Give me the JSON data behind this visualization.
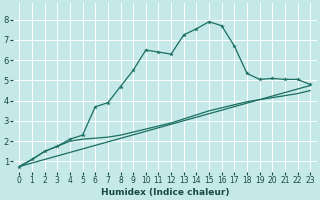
{
  "xlabel": "Humidex (Indice chaleur)",
  "xlim": [
    -0.5,
    23.5
  ],
  "ylim": [
    0.5,
    8.8
  ],
  "xticks": [
    0,
    1,
    2,
    3,
    4,
    5,
    6,
    7,
    8,
    9,
    10,
    11,
    12,
    13,
    14,
    15,
    16,
    17,
    18,
    19,
    20,
    21,
    22,
    23
  ],
  "yticks": [
    1,
    2,
    3,
    4,
    5,
    6,
    7,
    8
  ],
  "bg_color": "#c5e8e8",
  "grid_color": "#ffffff",
  "line_color": "#1a6e62",
  "curve_x": [
    0,
    1,
    2,
    3,
    4,
    5,
    6,
    7,
    8,
    9,
    10,
    11,
    12,
    13,
    14,
    15,
    16,
    17,
    18,
    19,
    20,
    21,
    22,
    23
  ],
  "curve_y": [
    0.75,
    1.1,
    1.5,
    1.75,
    2.1,
    2.3,
    3.7,
    3.9,
    4.7,
    5.5,
    6.5,
    6.4,
    6.3,
    7.25,
    7.55,
    7.9,
    7.7,
    6.7,
    5.35,
    5.05,
    5.1,
    5.05,
    5.05,
    4.8
  ],
  "lower_x": [
    0,
    1,
    2,
    3,
    4,
    5,
    6,
    7,
    8,
    9,
    10,
    11,
    12,
    13,
    14,
    15,
    16,
    17,
    18,
    19,
    20,
    21,
    22,
    23
  ],
  "lower_y": [
    0.75,
    1.1,
    1.5,
    1.75,
    2.0,
    2.1,
    2.15,
    2.2,
    2.3,
    2.45,
    2.6,
    2.75,
    2.9,
    3.1,
    3.3,
    3.5,
    3.65,
    3.8,
    3.95,
    4.05,
    4.15,
    4.25,
    4.35,
    4.5
  ],
  "trend_x": [
    0,
    23
  ],
  "trend_y": [
    0.75,
    4.75
  ]
}
